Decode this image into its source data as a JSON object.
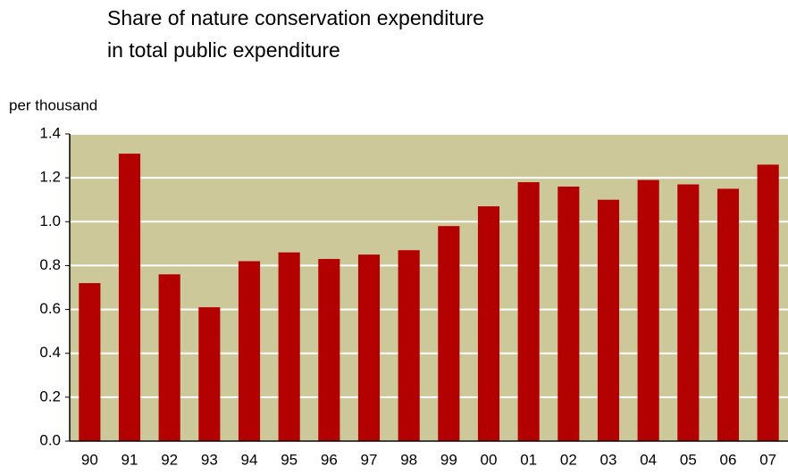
{
  "chart_data": {
    "type": "bar",
    "title": [
      "Share of nature conservation expenditure",
      "in total public expenditure"
    ],
    "y_label": "per thousand",
    "categories": [
      "90",
      "91",
      "92",
      "93",
      "94",
      "95",
      "96",
      "97",
      "98",
      "99",
      "00",
      "01",
      "02",
      "03",
      "04",
      "05",
      "06",
      "07"
    ],
    "values": [
      0.72,
      1.31,
      0.76,
      0.61,
      0.82,
      0.86,
      0.83,
      0.85,
      0.87,
      0.98,
      1.07,
      1.18,
      1.16,
      1.1,
      1.19,
      1.17,
      1.15,
      1.26
    ],
    "color": "#b30000",
    "background": "#cdc899",
    "ylim": [
      0,
      1.4
    ],
    "yticks": [
      {
        "value": 0,
        "label": "0.0"
      },
      0.2,
      0.4,
      0.6,
      0.8,
      {
        "value": 1,
        "label": "1.0"
      },
      1.2,
      1.4
    ],
    "grid": true
  }
}
